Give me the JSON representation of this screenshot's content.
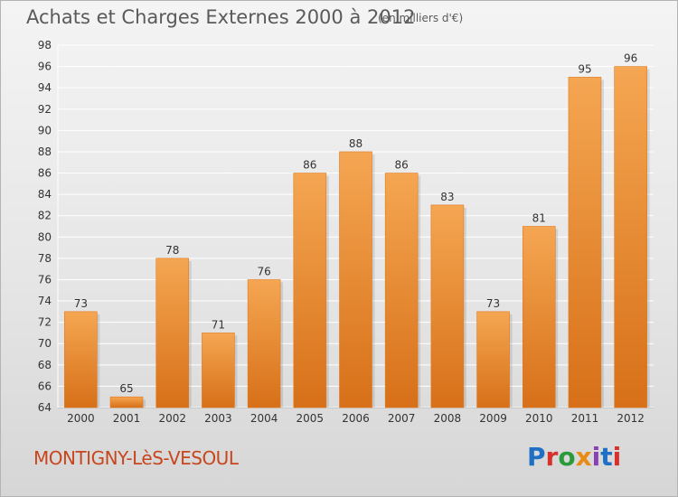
{
  "header": {
    "title": "Achats et Charges Externes 2000 à 2012",
    "subtitle": "(en milliers d'€)"
  },
  "footer": {
    "place": "MONTIGNY-LèS-VESOUL",
    "brand": "Proxiti",
    "brand_colors": [
      "#1f6fc4",
      "#d9302c",
      "#2b9b3a",
      "#e88b17",
      "#8a3fb3",
      "#1f6fc4",
      "#d9302c"
    ]
  },
  "colors": {
    "bar_light": "#f5a652",
    "bar_dark": "#d77018",
    "grid": "#ffffff",
    "text": "#333333"
  },
  "chart_data": {
    "type": "bar",
    "title": "Achats et Charges Externes 2000 à 2012",
    "subtitle": "(en milliers d'€)",
    "categories": [
      "2000",
      "2001",
      "2002",
      "2003",
      "2004",
      "2005",
      "2006",
      "2007",
      "2008",
      "2009",
      "2010",
      "2011",
      "2012"
    ],
    "values": [
      73,
      65,
      78,
      71,
      76,
      86,
      88,
      86,
      83,
      73,
      81,
      95,
      96
    ],
    "data_labels": [
      "73",
      "65",
      "78",
      "71",
      "76",
      "86",
      "88",
      "86",
      "83",
      "73",
      "81",
      "95",
      "96"
    ],
    "ylim": [
      64,
      98
    ],
    "yticks": [
      64,
      66,
      68,
      70,
      72,
      74,
      76,
      78,
      80,
      82,
      84,
      86,
      88,
      90,
      92,
      94,
      96,
      98
    ],
    "ytick_labels": [
      "64",
      "66",
      "68",
      "70",
      "72",
      "74",
      "76",
      "78",
      "80",
      "82",
      "84",
      "86",
      "88",
      "90",
      "92",
      "94",
      "96",
      "98"
    ],
    "grid": true,
    "legend": "none"
  }
}
